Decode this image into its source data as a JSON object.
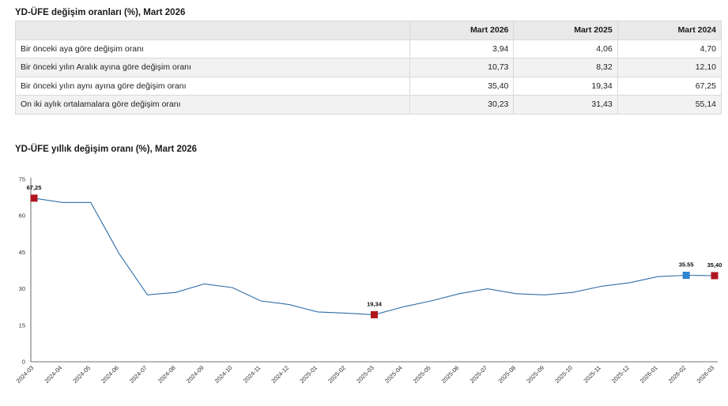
{
  "table": {
    "title": "YD-ÜFE değişim oranları (%), Mart 2026",
    "headers": [
      "",
      "Mart 2026",
      "Mart 2025",
      "Mart 2024"
    ],
    "rows": [
      {
        "label": "Bir önceki aya göre değişim oranı",
        "values": [
          "3,94",
          "4,06",
          "4,70"
        ]
      },
      {
        "label": "Bir önceki yılın Aralık ayına göre değişim oranı",
        "values": [
          "10,73",
          "8,32",
          "12,10"
        ]
      },
      {
        "label": "Bir önceki yılın aynı ayına göre değişim oranı",
        "values": [
          "35,40",
          "19,34",
          "67,25"
        ]
      },
      {
        "label": "On iki aylık ortalamalara göre değişim oranı",
        "values": [
          "30,23",
          "31,43",
          "55,14"
        ]
      }
    ]
  },
  "chart_data": {
    "type": "line",
    "title": "YD-ÜFE yıllık değişim oranı (%), Mart 2026",
    "xlabel": "",
    "ylabel": "",
    "ylim": [
      0,
      75
    ],
    "yticks": [
      0,
      15,
      30,
      45,
      60,
      75
    ],
    "grid": false,
    "x": [
      "2024-03",
      "2024-04",
      "2024-05",
      "2024-06",
      "2024-07",
      "2024-08",
      "2024-09",
      "2024-10",
      "2024-11",
      "2024-12",
      "2025-01",
      "2025-02",
      "2025-03",
      "2025-04",
      "2025-05",
      "2025-06",
      "2025-07",
      "2025-08",
      "2025-09",
      "2025-10",
      "2025-11",
      "2025-12",
      "2026-01",
      "2026-02",
      "2026-03"
    ],
    "series": [
      {
        "color": "#2f6ea6",
        "values": [
          67.25,
          65.5,
          65.5,
          44.5,
          27.5,
          28.5,
          32.0,
          30.5,
          25.0,
          23.5,
          20.5,
          20.0,
          19.34,
          22.5,
          25.0,
          28.0,
          30.0,
          28.0,
          27.5,
          28.5,
          31.0,
          32.5,
          35.0,
          35.55,
          35.4
        ]
      }
    ],
    "highlights": [
      {
        "index": 0,
        "label": "67,25",
        "color": "#b0161e"
      },
      {
        "index": 12,
        "label": "19,34",
        "color": "#b0161e"
      },
      {
        "index": 23,
        "label": "35.55",
        "color": "#2f86d0"
      },
      {
        "index": 24,
        "label": "35,40",
        "color": "#b0161e"
      }
    ]
  }
}
